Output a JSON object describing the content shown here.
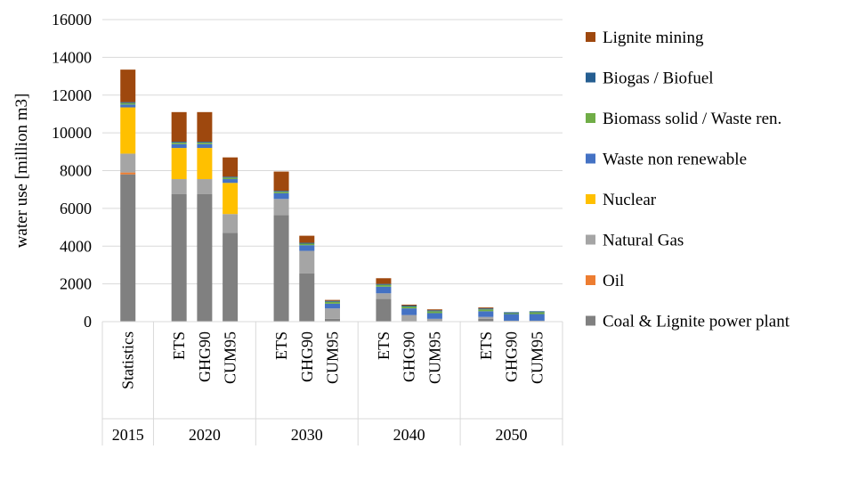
{
  "chart_data": {
    "type": "bar",
    "stacked": true,
    "title": "",
    "xlabel": "",
    "ylabel": "water use [million m3]",
    "ylim": [
      0,
      16000
    ],
    "yticks": [
      0,
      2000,
      4000,
      6000,
      8000,
      10000,
      12000,
      14000,
      16000
    ],
    "ytick_labels": [
      "0",
      "2000",
      "4000",
      "6000",
      "8000",
      "10000",
      "12000",
      "14000",
      "16000"
    ],
    "grid": true,
    "legend_position": "right",
    "groups": [
      {
        "label": "2015",
        "categories": [
          "Statistics"
        ]
      },
      {
        "label": "2020",
        "categories": [
          "ETS",
          "GHG90",
          "CUM95"
        ]
      },
      {
        "label": "2030",
        "categories": [
          "ETS",
          "GHG90",
          "CUM95"
        ]
      },
      {
        "label": "2040",
        "categories": [
          "ETS",
          "GHG90",
          "CUM95"
        ]
      },
      {
        "label": "2050",
        "categories": [
          "ETS",
          "GHG90",
          "CUM95"
        ]
      }
    ],
    "series": [
      {
        "name": "Coal & Lignite power plant",
        "color": "#808080",
        "values": [
          7800,
          6750,
          6750,
          4700,
          5650,
          2550,
          150,
          1200,
          0,
          0,
          150,
          0,
          0
        ]
      },
      {
        "name": "Oil",
        "color": "#ED7D31",
        "values": [
          100,
          0,
          0,
          0,
          0,
          0,
          0,
          0,
          0,
          0,
          0,
          0,
          0
        ]
      },
      {
        "name": "Natural Gas",
        "color": "#A5A5A5",
        "values": [
          1000,
          800,
          800,
          1000,
          850,
          1200,
          550,
          300,
          350,
          150,
          100,
          50,
          50
        ]
      },
      {
        "name": "Nuclear",
        "color": "#FFC000",
        "values": [
          2450,
          1650,
          1650,
          1650,
          0,
          0,
          0,
          0,
          0,
          0,
          0,
          0,
          0
        ]
      },
      {
        "name": "Waste non renewable",
        "color": "#4472C4",
        "values": [
          150,
          200,
          200,
          200,
          300,
          300,
          250,
          350,
          350,
          300,
          300,
          350,
          350
        ]
      },
      {
        "name": "Biomass solid / Waste ren.",
        "color": "#70AD47",
        "values": [
          80,
          80,
          80,
          80,
          80,
          80,
          100,
          100,
          100,
          100,
          100,
          50,
          100
        ]
      },
      {
        "name": "Biogas / Biofuel",
        "color": "#255E91",
        "values": [
          50,
          50,
          50,
          50,
          50,
          50,
          50,
          50,
          50,
          50,
          50,
          50,
          50
        ]
      },
      {
        "name": "Lignite mining",
        "color": "#9E480E",
        "values": [
          1720,
          1570,
          1570,
          1020,
          1020,
          370,
          50,
          300,
          50,
          50,
          50,
          0,
          0
        ]
      }
    ]
  }
}
